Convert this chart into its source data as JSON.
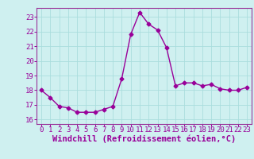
{
  "x": [
    0,
    1,
    2,
    3,
    4,
    5,
    6,
    7,
    8,
    9,
    10,
    11,
    12,
    13,
    14,
    15,
    16,
    17,
    18,
    19,
    20,
    21,
    22,
    23
  ],
  "y": [
    18.0,
    17.5,
    16.9,
    16.8,
    16.5,
    16.5,
    16.5,
    16.7,
    16.9,
    18.8,
    21.8,
    23.3,
    22.5,
    22.1,
    20.9,
    18.3,
    18.5,
    18.5,
    18.3,
    18.4,
    18.1,
    18.0,
    18.0,
    18.2
  ],
  "line_color": "#990099",
  "marker": "D",
  "markersize": 2.5,
  "linewidth": 1.0,
  "xlabel": "Windchill (Refroidissement éolien,°C)",
  "ylabel": "",
  "title": "",
  "xlim": [
    -0.5,
    23.5
  ],
  "ylim": [
    15.7,
    23.6
  ],
  "yticks": [
    16,
    17,
    18,
    19,
    20,
    21,
    22,
    23
  ],
  "xticks": [
    0,
    1,
    2,
    3,
    4,
    5,
    6,
    7,
    8,
    9,
    10,
    11,
    12,
    13,
    14,
    15,
    16,
    17,
    18,
    19,
    20,
    21,
    22,
    23
  ],
  "background_color": "#cff0f0",
  "grid_color": "#aadddd",
  "font_color": "#990099",
  "font_family": "monospace",
  "xlabel_fontsize": 7.5,
  "tick_fontsize": 6.5,
  "spine_color": "#993399"
}
